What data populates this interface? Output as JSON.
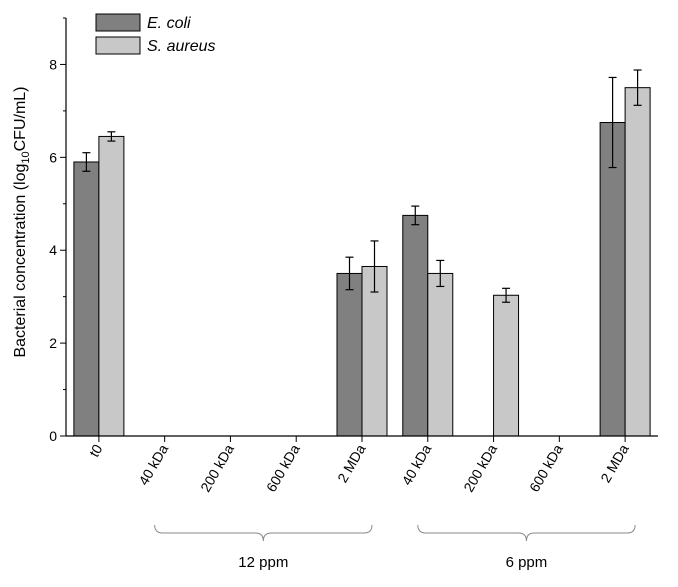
{
  "chart_data": {
    "type": "bar",
    "title": "",
    "xlabel": "",
    "ylabel": {
      "prefix": "Bacterial concentration (log",
      "subscript": "10",
      "suffix": "CFU/mL)"
    },
    "ylim": [
      0,
      9
    ],
    "yticks": [
      "0",
      "2",
      "4",
      "6",
      "8"
    ],
    "categories": [
      "t0",
      "40 kDa",
      "200 kDa",
      "600 kDa",
      "2 MDa",
      "40 kDa",
      "200 kDa",
      "600 kDa",
      "2 MDa"
    ],
    "groups": [
      {
        "label": "12 ppm",
        "from": 1,
        "to": 4
      },
      {
        "label": "6 ppm",
        "from": 5,
        "to": 8
      }
    ],
    "series": [
      {
        "name": "E. coli",
        "color": "#808080",
        "values": [
          5.9,
          0,
          0,
          0,
          3.5,
          4.75,
          0,
          0,
          6.75
        ],
        "errors": [
          0.2,
          0,
          0,
          0,
          0.35,
          0.2,
          0,
          0,
          0.97
        ]
      },
      {
        "name": "S. aureus",
        "color": "#c8c8c8",
        "values": [
          6.45,
          0,
          0,
          0,
          3.65,
          3.5,
          3.03,
          0,
          7.5
        ],
        "errors": [
          0.1,
          0,
          0,
          0,
          0.55,
          0.28,
          0.15,
          0,
          0.38
        ]
      }
    ],
    "legend_position": "top-left"
  }
}
